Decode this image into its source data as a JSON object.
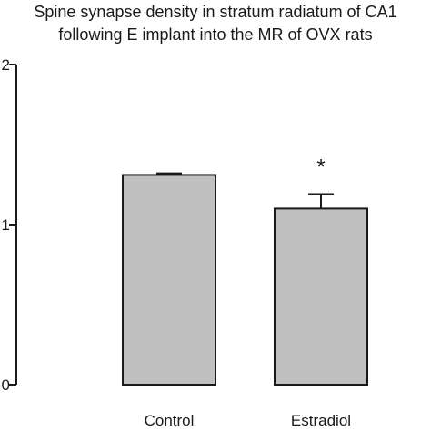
{
  "chart_data": {
    "type": "bar",
    "title_lines": [
      "Spine synapse density in stratum radiatum of CA1",
      "following E implant into the MR of OVX rats"
    ],
    "categories": [
      "Control",
      "Estradiol"
    ],
    "values": [
      1.31,
      1.1
    ],
    "error_plus": [
      0.01,
      0.09
    ],
    "annotations": [
      {
        "category": "Estradiol",
        "text": "*"
      }
    ],
    "ytick_labels": [
      "0",
      "1",
      "2"
    ],
    "ylim": [
      0,
      2
    ],
    "xlabel": "",
    "ylabel": "",
    "grid": false,
    "bar_color": "#c0c0c0",
    "edge_color": "#1a1a1a"
  }
}
